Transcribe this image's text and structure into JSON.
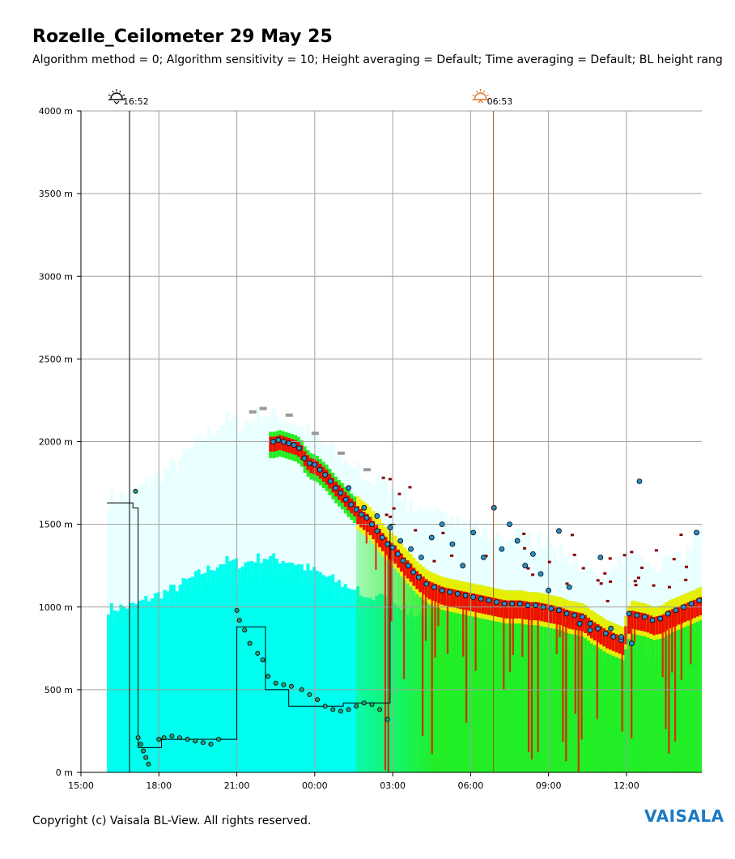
{
  "header": {
    "title": "Rozelle_Ceilometer 29 May 25",
    "subtitle": "Algorithm method = 0; Algorithm sensitivity = 10; Height averaging = Default; Time averaging = Default; BL height rang"
  },
  "footer": {
    "copyright": "Copyright (c) Vaisala BL-View. All rights reserved.",
    "logo": "VAISALA"
  },
  "colors": {
    "background_low": "#00ffee",
    "background_haze": "#e8ffff",
    "aerosol_mid": "#22ee22",
    "aerosol_high": "#ffee00",
    "aerosol_peak": "#ee1100",
    "cloud_base": "#880000",
    "bl_marker_fill": "#2a8ec8",
    "bl_marker_stroke": "#000000",
    "sunset_icon": "#000000",
    "sunrise_icon": "#e07020",
    "sunrise_line": "#a0561a",
    "grid": "#a0a0a0",
    "logo": "#1a7ac4"
  },
  "icons": {
    "sunset": "sunset-icon",
    "sunrise": "sunrise-icon"
  },
  "chart_data": {
    "type": "heatmap",
    "x_axis": {
      "start_hours": 15.0,
      "end_hours": 38.9,
      "ticks": [
        "15:00",
        "18:00",
        "21:00",
        "00:00",
        "03:00",
        "06:00",
        "09:00",
        "12:00"
      ],
      "tick_hours": [
        15,
        18,
        21,
        24,
        27,
        30,
        33,
        36
      ]
    },
    "y_axis": {
      "ylim": [
        0,
        4000
      ],
      "unit": "m",
      "ticks": [
        "0 m",
        "500 m",
        "1000 m",
        "1500 m",
        "2000 m",
        "2500 m",
        "3000 m",
        "3500 m",
        "4000 m"
      ],
      "tick_values": [
        0,
        500,
        1000,
        1500,
        2000,
        2500,
        3000,
        3500,
        4000
      ]
    },
    "grid": true,
    "annotations": [
      {
        "kind": "sunset",
        "label": "16:52",
        "hours": 16.87
      },
      {
        "kind": "sunrise",
        "label": "06:53",
        "hours": 30.88
      }
    ],
    "bl_height_step": {
      "name": "",
      "x": [
        16.0,
        17.0,
        17.0,
        17.2,
        17.2,
        18.1,
        18.1,
        20.1,
        20.1,
        21.0,
        21.0,
        22.1,
        22.1,
        23.0,
        23.0,
        25.1,
        25.1,
        26.9,
        26.9,
        27.1
      ],
      "y": [
        1630,
        1630,
        1600,
        1600,
        150,
        150,
        200,
        200,
        200,
        200,
        880,
        880,
        500,
        500,
        400,
        400,
        420,
        420,
        1500,
        1500
      ]
    },
    "bl_points_early": {
      "x": [
        17.1,
        17.2,
        17.3,
        17.4,
        17.5,
        17.6,
        18.0,
        18.2,
        18.5,
        18.8,
        19.1,
        19.4,
        19.7,
        20.0,
        20.3,
        21.0,
        21.1,
        21.3,
        21.5,
        21.8,
        22.0,
        22.2,
        22.5,
        22.8,
        23.1,
        23.5,
        23.8,
        24.1,
        24.4,
        24.7,
        25.0,
        25.3,
        25.6,
        25.9,
        26.2,
        26.5,
        26.8
      ],
      "y": [
        1700,
        210,
        170,
        130,
        90,
        50,
        200,
        210,
        220,
        210,
        200,
        190,
        180,
        170,
        200,
        980,
        920,
        860,
        780,
        720,
        680,
        580,
        540,
        530,
        520,
        500,
        470,
        440,
        400,
        380,
        370,
        380,
        400,
        420,
        410,
        380,
        320
      ]
    },
    "bl_points_main": {
      "x": [
        22.4,
        22.6,
        22.8,
        23.0,
        23.2,
        23.4,
        23.6,
        23.8,
        24.0,
        24.2,
        24.4,
        24.6,
        24.8,
        25.0,
        25.2,
        25.4,
        25.6,
        25.8,
        26.0,
        26.2,
        26.4,
        26.6,
        26.8,
        27.0,
        27.2,
        27.4,
        27.6,
        27.8,
        28.0,
        28.3,
        28.6,
        28.9,
        29.2,
        29.5,
        29.8,
        30.1,
        30.4,
        30.7,
        31.0,
        31.3,
        31.6,
        31.9,
        32.2,
        32.5,
        32.8,
        33.1,
        33.4,
        33.7,
        34.0,
        34.3,
        34.6,
        34.9,
        35.2,
        35.5,
        35.8,
        36.1,
        36.4,
        36.7,
        37.0,
        37.3,
        37.6,
        37.9,
        38.2,
        38.5,
        38.8
      ],
      "y": [
        2000,
        2010,
        2000,
        1990,
        1980,
        1960,
        1900,
        1870,
        1860,
        1830,
        1800,
        1760,
        1720,
        1690,
        1650,
        1620,
        1590,
        1560,
        1540,
        1500,
        1460,
        1420,
        1380,
        1360,
        1320,
        1280,
        1250,
        1210,
        1180,
        1140,
        1120,
        1100,
        1090,
        1080,
        1070,
        1060,
        1050,
        1040,
        1030,
        1020,
        1020,
        1020,
        1010,
        1010,
        1000,
        990,
        980,
        960,
        950,
        940,
        900,
        870,
        840,
        820,
        800,
        960,
        950,
        940,
        920,
        930,
        960,
        980,
        1000,
        1020,
        1040
      ]
    },
    "bl_points_scatter": {
      "x": [
        25.3,
        25.9,
        26.4,
        26.9,
        27.3,
        27.7,
        28.1,
        28.5,
        28.9,
        29.3,
        29.7,
        30.1,
        30.5,
        30.9,
        31.2,
        31.5,
        31.8,
        32.1,
        32.4,
        32.7,
        33.0,
        33.4,
        33.8,
        34.2,
        34.6,
        35.0,
        35.4,
        35.8,
        36.2,
        36.5,
        38.7
      ],
      "y": [
        1720,
        1600,
        1550,
        1480,
        1400,
        1350,
        1300,
        1420,
        1500,
        1380,
        1250,
        1450,
        1300,
        1600,
        1350,
        1500,
        1400,
        1250,
        1320,
        1200,
        1100,
        1460,
        1120,
        900,
        860,
        1300,
        870,
        820,
        780,
        1760,
        1450
      ]
    },
    "top_layer": {
      "x": [
        16.0,
        17.0,
        17.5,
        18.5,
        19.5,
        20.5,
        21.2,
        21.6,
        22.0,
        23.0,
        24.0,
        25.0,
        26.0,
        27.0,
        28.0,
        29.0,
        30.0,
        31.0,
        32.0,
        33.0,
        34.0,
        35.0,
        36.0,
        37.0,
        38.0,
        38.9
      ],
      "y": [
        1650,
        1680,
        1750,
        1850,
        2000,
        2130,
        2100,
        2150,
        2170,
        2130,
        2020,
        1900,
        1800,
        1700,
        1600,
        1520,
        1480,
        1440,
        1420,
        1380,
        1250,
        1150,
        1300,
        1250,
        1280,
        1500
      ]
    }
  }
}
